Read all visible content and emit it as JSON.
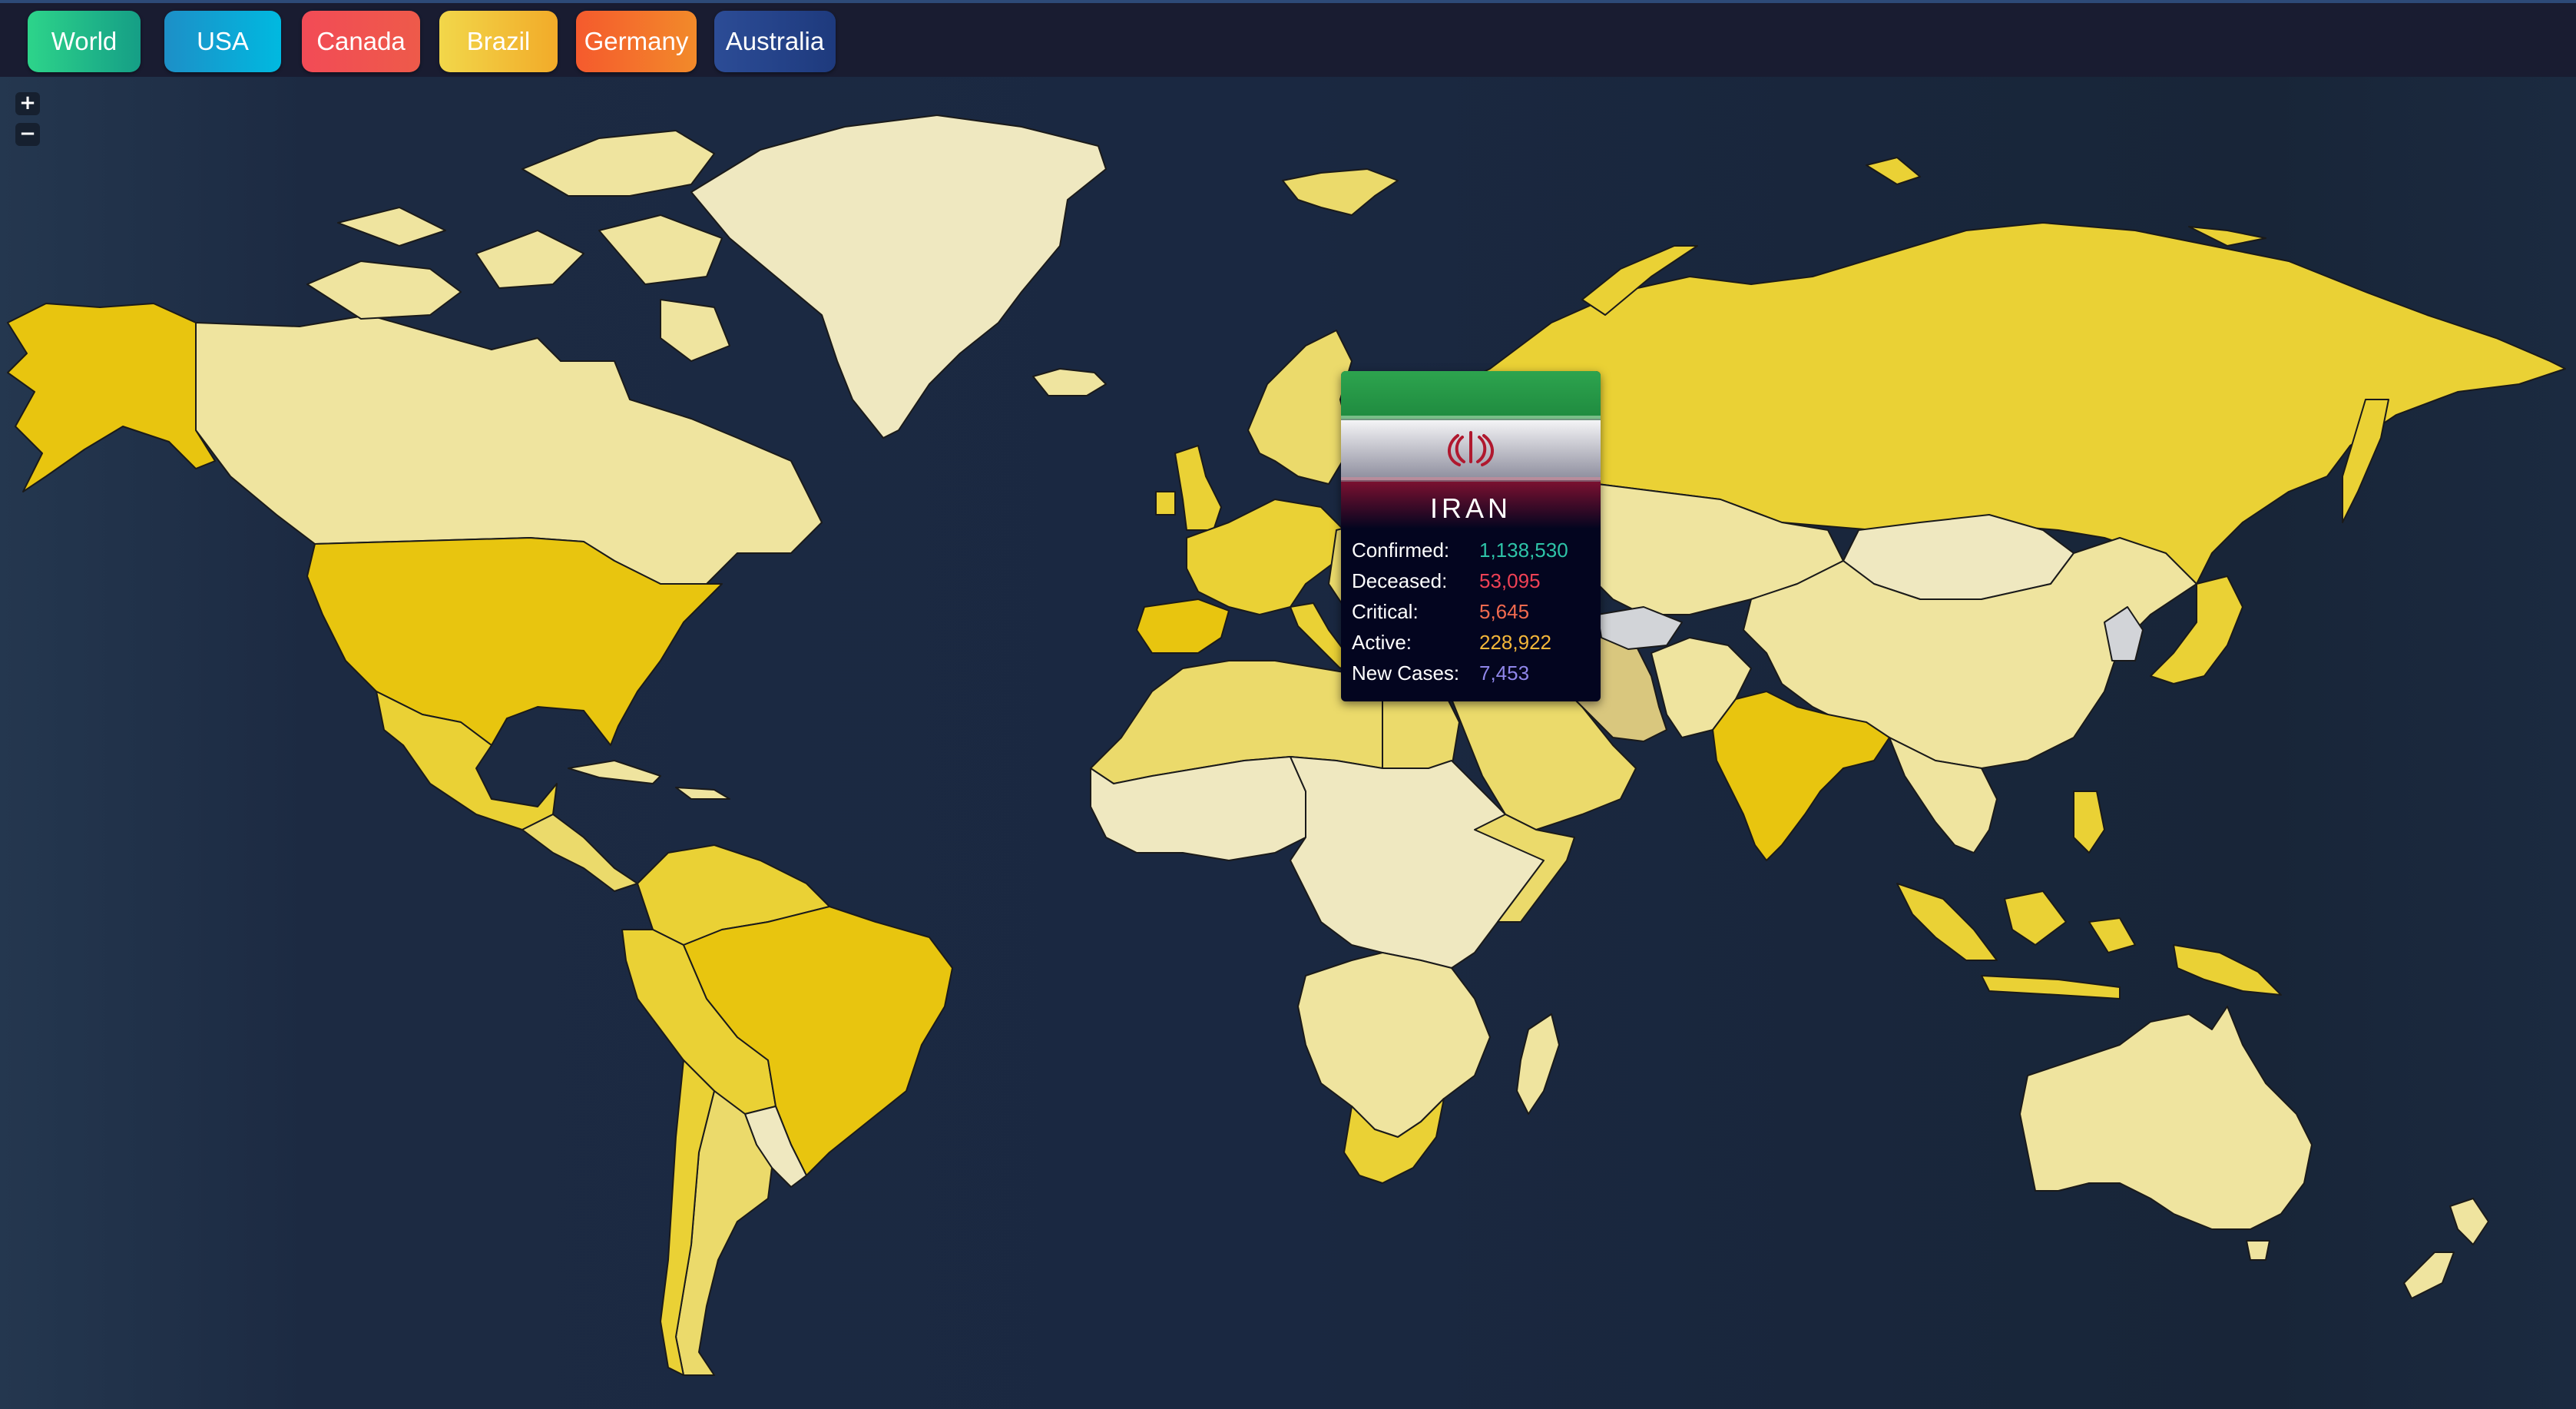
{
  "nav": {
    "buttons": [
      {
        "label": "World",
        "color_from": "#2dd48a",
        "color_to": "#159e86"
      },
      {
        "label": "USA",
        "color_from": "#1d8fc7",
        "color_to": "#00b9e0"
      },
      {
        "label": "Canada",
        "color_from": "#f24b56",
        "color_to": "#ee5a4a"
      },
      {
        "label": "Brazil",
        "color_from": "#f2d74a",
        "color_to": "#f2ab29"
      },
      {
        "label": "Germany",
        "color_from": "#f55a2d",
        "color_to": "#f28a2a"
      },
      {
        "label": "Australia",
        "color_from": "#2c4c96",
        "color_to": "#1e3a7d"
      }
    ]
  },
  "map": {
    "zoom_in_label": "+",
    "zoom_out_label": "−",
    "colors": {
      "highest": "#e8c50f",
      "high": "#ead135",
      "medium": "#ebda6b",
      "low": "#efe49f",
      "lowest": "#efe8c0",
      "hovered": "#d9c77e",
      "no_data": "#d2d4d8",
      "border": "#1a1a1a"
    }
  },
  "tooltip": {
    "country": "IRAN",
    "flag_icon": "iran-flag",
    "stats": [
      {
        "label": "Confirmed:",
        "value": "1,138,530",
        "color": "#2ec4a8"
      },
      {
        "label": "Deceased:",
        "value": "53,095",
        "color": "#f04155"
      },
      {
        "label": "Critical:",
        "value": "5,645",
        "color": "#f26a4f"
      },
      {
        "label": "Active:",
        "value": "228,922",
        "color": "#f4b73a"
      },
      {
        "label": "New Cases:",
        "value": "7,453",
        "color": "#8f86ea"
      }
    ]
  }
}
